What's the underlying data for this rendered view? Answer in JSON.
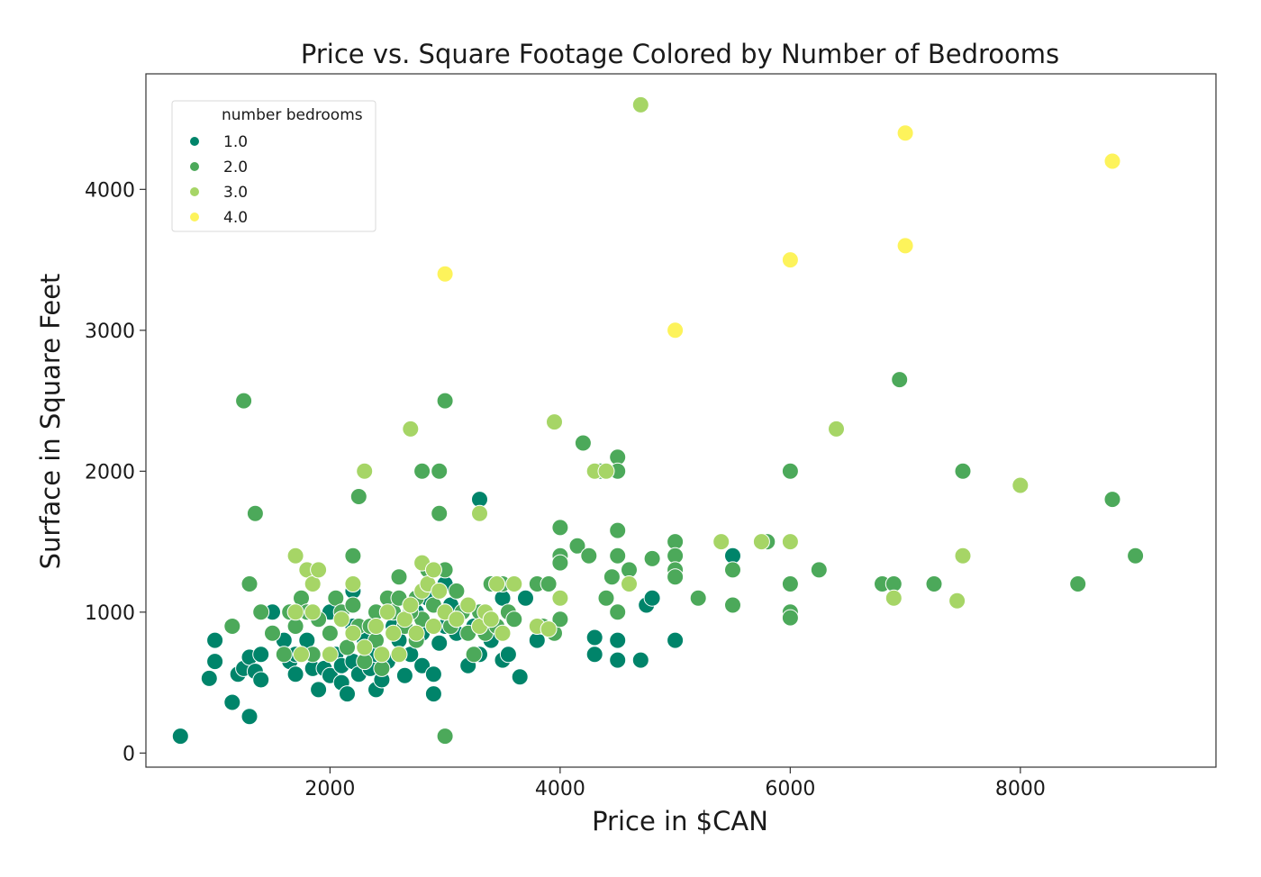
{
  "chart_data": {
    "type": "scatter",
    "title": "Price vs. Square Footage Colored by Number of Bedrooms",
    "xlabel": "Price in $CAN",
    "ylabel": "Surface in Square Feet",
    "xlim": [
      400,
      9700
    ],
    "ylim": [
      -100,
      4820
    ],
    "xticks": [
      2000,
      4000,
      6000,
      8000
    ],
    "yticks": [
      0,
      1000,
      2000,
      3000,
      4000
    ],
    "grid": false,
    "legend": {
      "title": "number bedrooms",
      "placement": "upper-left",
      "entries": [
        {
          "label": "1.0",
          "color": "#00846a"
        },
        {
          "label": "2.0",
          "color": "#4ca95a"
        },
        {
          "label": "3.0",
          "color": "#a6d566"
        },
        {
          "label": "4.0",
          "color": "#fdf35b"
        }
      ]
    },
    "series": [
      {
        "name": "1.0",
        "color": "#00846a",
        "points": [
          [
            700,
            120
          ],
          [
            950,
            530
          ],
          [
            1000,
            800
          ],
          [
            1000,
            650
          ],
          [
            1150,
            360
          ],
          [
            1200,
            560
          ],
          [
            1250,
            600
          ],
          [
            1300,
            260
          ],
          [
            1300,
            680
          ],
          [
            1350,
            580
          ],
          [
            1400,
            520
          ],
          [
            1400,
            700
          ],
          [
            1500,
            1000
          ],
          [
            1600,
            800
          ],
          [
            1650,
            650
          ],
          [
            1700,
            560
          ],
          [
            1700,
            700
          ],
          [
            1800,
            800
          ],
          [
            1850,
            600
          ],
          [
            1900,
            450
          ],
          [
            1950,
            600
          ],
          [
            2000,
            1000
          ],
          [
            2000,
            550
          ],
          [
            2050,
            700
          ],
          [
            2100,
            620
          ],
          [
            2100,
            500
          ],
          [
            2150,
            420
          ],
          [
            2200,
            900
          ],
          [
            2200,
            650
          ],
          [
            2200,
            1150
          ],
          [
            2250,
            560
          ],
          [
            2300,
            800
          ],
          [
            2350,
            600
          ],
          [
            2400,
            450
          ],
          [
            2400,
            700
          ],
          [
            2450,
            520
          ],
          [
            2500,
            650
          ],
          [
            2550,
            900
          ],
          [
            2600,
            800
          ],
          [
            2650,
            550
          ],
          [
            2700,
            700
          ],
          [
            2750,
            1000
          ],
          [
            2800,
            620
          ],
          [
            2800,
            850
          ],
          [
            2850,
            1100
          ],
          [
            2900,
            420
          ],
          [
            2900,
            560
          ],
          [
            2950,
            780
          ],
          [
            3000,
            900
          ],
          [
            3000,
            1200
          ],
          [
            3050,
            1050
          ],
          [
            3100,
            850
          ],
          [
            3200,
            620
          ],
          [
            3250,
            900
          ],
          [
            3300,
            700
          ],
          [
            3300,
            1800
          ],
          [
            3400,
            800
          ],
          [
            3500,
            1100
          ],
          [
            3500,
            660
          ],
          [
            3550,
            700
          ],
          [
            3650,
            540
          ],
          [
            3700,
            1100
          ],
          [
            3800,
            800
          ],
          [
            4300,
            820
          ],
          [
            4300,
            700
          ],
          [
            4500,
            800
          ],
          [
            4500,
            660
          ],
          [
            4700,
            660
          ],
          [
            4750,
            1050
          ],
          [
            4800,
            1100
          ],
          [
            5000,
            800
          ],
          [
            5500,
            1400
          ]
        ]
      },
      {
        "name": "2.0",
        "color": "#4ca95a",
        "points": [
          [
            1250,
            2500
          ],
          [
            1300,
            1200
          ],
          [
            1350,
            1700
          ],
          [
            1150,
            900
          ],
          [
            1400,
            1000
          ],
          [
            1500,
            850
          ],
          [
            1600,
            700
          ],
          [
            1650,
            1000
          ],
          [
            1700,
            900
          ],
          [
            1750,
            1100
          ],
          [
            1800,
            1000
          ],
          [
            1850,
            700
          ],
          [
            1900,
            950
          ],
          [
            2000,
            850
          ],
          [
            2050,
            1100
          ],
          [
            2100,
            1000
          ],
          [
            2150,
            750
          ],
          [
            2200,
            1400
          ],
          [
            2200,
            1050
          ],
          [
            2250,
            900
          ],
          [
            2250,
            1820
          ],
          [
            2300,
            650
          ],
          [
            2350,
            900
          ],
          [
            2400,
            800
          ],
          [
            2450,
            600
          ],
          [
            2500,
            1100
          ],
          [
            2550,
            1000
          ],
          [
            2600,
            1250
          ],
          [
            2650,
            900
          ],
          [
            2700,
            1050
          ],
          [
            2750,
            800
          ],
          [
            2800,
            950
          ],
          [
            2800,
            2000
          ],
          [
            2850,
            1300
          ],
          [
            2900,
            1050
          ],
          [
            2950,
            2000
          ],
          [
            2950,
            1700
          ],
          [
            3000,
            2500
          ],
          [
            3000,
            1300
          ],
          [
            3000,
            120
          ],
          [
            3050,
            900
          ],
          [
            3100,
            1150
          ],
          [
            3150,
            1000
          ],
          [
            3200,
            850
          ],
          [
            3250,
            700
          ],
          [
            3300,
            1000
          ],
          [
            3350,
            850
          ],
          [
            3400,
            1200
          ],
          [
            3450,
            900
          ],
          [
            3500,
            1200
          ],
          [
            3550,
            1000
          ],
          [
            3600,
            950
          ],
          [
            3800,
            1200
          ],
          [
            3850,
            900
          ],
          [
            3900,
            1200
          ],
          [
            3950,
            850
          ],
          [
            4000,
            1600
          ],
          [
            4000,
            1400
          ],
          [
            4000,
            1350
          ],
          [
            4000,
            950
          ],
          [
            4150,
            1470
          ],
          [
            4200,
            2200
          ],
          [
            4250,
            1400
          ],
          [
            4350,
            2000
          ],
          [
            4400,
            1100
          ],
          [
            4450,
            1250
          ],
          [
            4500,
            2100
          ],
          [
            4500,
            1580
          ],
          [
            4500,
            1400
          ],
          [
            4500,
            1000
          ],
          [
            4500,
            2000
          ],
          [
            4600,
            1300
          ],
          [
            4800,
            1380
          ],
          [
            5000,
            1500
          ],
          [
            5000,
            1400
          ],
          [
            5000,
            1300
          ],
          [
            5000,
            1250
          ],
          [
            5200,
            1100
          ],
          [
            5500,
            1300
          ],
          [
            5500,
            1050
          ],
          [
            5800,
            1500
          ],
          [
            6000,
            2000
          ],
          [
            6000,
            1200
          ],
          [
            6000,
            1000
          ],
          [
            6000,
            960
          ],
          [
            6250,
            1300
          ],
          [
            6800,
            1200
          ],
          [
            6900,
            1200
          ],
          [
            6950,
            2650
          ],
          [
            7250,
            1200
          ],
          [
            7500,
            2000
          ],
          [
            8500,
            1200
          ],
          [
            8800,
            1800
          ],
          [
            9000,
            1400
          ],
          [
            2400,
            1000
          ],
          [
            2600,
            1100
          ],
          [
            2700,
            1000
          ],
          [
            2750,
            1100
          ],
          [
            3000,
            1000
          ],
          [
            3100,
            950
          ]
        ]
      },
      {
        "name": "3.0",
        "color": "#a6d566",
        "points": [
          [
            1700,
            1400
          ],
          [
            1800,
            1300
          ],
          [
            1850,
            1200
          ],
          [
            1900,
            1300
          ],
          [
            1700,
            1000
          ],
          [
            1750,
            700
          ],
          [
            1850,
            1000
          ],
          [
            2000,
            700
          ],
          [
            2100,
            950
          ],
          [
            2200,
            1200
          ],
          [
            2200,
            850
          ],
          [
            2300,
            2000
          ],
          [
            2300,
            750
          ],
          [
            2400,
            900
          ],
          [
            2450,
            700
          ],
          [
            2500,
            1000
          ],
          [
            2550,
            850
          ],
          [
            2600,
            700
          ],
          [
            2650,
            950
          ],
          [
            2700,
            2300
          ],
          [
            2700,
            1050
          ],
          [
            2750,
            850
          ],
          [
            2800,
            1150
          ],
          [
            2800,
            1350
          ],
          [
            2850,
            1200
          ],
          [
            2900,
            1300
          ],
          [
            2900,
            900
          ],
          [
            2950,
            1150
          ],
          [
            3000,
            1000
          ],
          [
            3100,
            950
          ],
          [
            3200,
            1050
          ],
          [
            3300,
            1700
          ],
          [
            3300,
            900
          ],
          [
            3350,
            1000
          ],
          [
            3400,
            950
          ],
          [
            3450,
            1200
          ],
          [
            3500,
            850
          ],
          [
            3600,
            1200
          ],
          [
            3800,
            900
          ],
          [
            3900,
            880
          ],
          [
            3950,
            2350
          ],
          [
            4000,
            1100
          ],
          [
            4300,
            2000
          ],
          [
            4400,
            2000
          ],
          [
            4600,
            1200
          ],
          [
            4700,
            4600
          ],
          [
            5400,
            1500
          ],
          [
            5750,
            1500
          ],
          [
            6000,
            1500
          ],
          [
            6400,
            2300
          ],
          [
            6900,
            1100
          ],
          [
            7450,
            1080
          ],
          [
            7500,
            1400
          ],
          [
            8000,
            1900
          ]
        ]
      },
      {
        "name": "4.0",
        "color": "#fdf35b",
        "points": [
          [
            3000,
            3400
          ],
          [
            5000,
            3000
          ],
          [
            6000,
            3500
          ],
          [
            7000,
            3600
          ],
          [
            7000,
            4400
          ],
          [
            8800,
            4200
          ]
        ]
      }
    ]
  }
}
